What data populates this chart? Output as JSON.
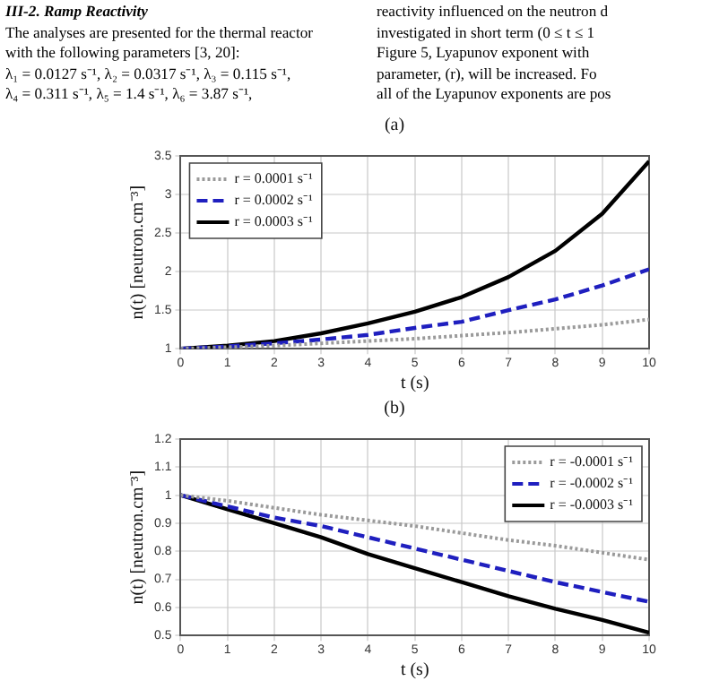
{
  "chart_data": [
    {
      "type": "line",
      "title": "(a)",
      "xlabel": "t (s)",
      "ylabel": "n(t) [neutron.cm⁻³]",
      "annotations": [
        "III-2. Ramp Reactivity",
        "The analyses are presented for the thermal reactor",
        "with the following parameters [3, 20]:",
        "λ₁ = 0.0127 s⁻¹, λ₂ = 0.0317 s⁻¹, λ₃ = 0.115 s⁻¹,",
        "λ₄ = 0.311 s⁻¹, λ₅ = 1.4 s⁻¹, λ₆ = 3.87 s⁻¹,",
        "reactivity influenced on the neutron d",
        "investigated in short term (0 ≤ t ≤ 1",
        "Figure 5, Lyapunov exponent with",
        "parameter, (r), will be increased. Fo",
        "all of the Lyapunov exponents are pos"
      ],
      "x": [
        0,
        1,
        2,
        3,
        4,
        5,
        6,
        7,
        8,
        9,
        10
      ],
      "series": [
        {
          "name": "r = 0.0001 s⁻¹",
          "color": "#9a9a9a",
          "line_style": "dotted",
          "values": [
            1,
            1.02,
            1.04,
            1.07,
            1.1,
            1.13,
            1.17,
            1.21,
            1.26,
            1.31,
            1.38
          ]
        },
        {
          "name": "r = 0.0002 s⁻¹",
          "color": "#1f1fbf",
          "line_style": "dashed",
          "values": [
            1,
            1.03,
            1.07,
            1.12,
            1.18,
            1.27,
            1.35,
            1.5,
            1.64,
            1.82,
            2.03
          ]
        },
        {
          "name": "r = 0.0003 s⁻¹",
          "color": "#000000",
          "line_style": "solid",
          "values": [
            1,
            1.04,
            1.1,
            1.2,
            1.33,
            1.48,
            1.67,
            1.93,
            2.27,
            2.75,
            3.43
          ]
        }
      ],
      "xlim": [
        0,
        10
      ],
      "xticks": [
        0,
        1,
        2,
        3,
        4,
        5,
        6,
        7,
        8,
        9,
        10
      ],
      "ylim": [
        1,
        3.5
      ],
      "yticks": [
        1,
        1.5,
        2,
        2.5,
        3,
        3.5
      ],
      "grid": true,
      "legend": "top left",
      "marker": "none"
    },
    {
      "type": "line",
      "title": "(b)",
      "xlabel": "t (s)",
      "ylabel": "n(t) [neutron.cm⁻³]",
      "x": [
        0,
        1,
        2,
        3,
        4,
        5,
        6,
        7,
        8,
        9,
        10
      ],
      "series": [
        {
          "name": "r = -0.0001 s⁻¹",
          "color": "#9a9a9a",
          "line_style": "dotted",
          "values": [
            1,
            0.98,
            0.955,
            0.93,
            0.91,
            0.89,
            0.865,
            0.84,
            0.82,
            0.795,
            0.77
          ]
        },
        {
          "name": "r = -0.0002 s⁻¹",
          "color": "#1f1fbf",
          "line_style": "dashed",
          "values": [
            1,
            0.96,
            0.92,
            0.89,
            0.85,
            0.81,
            0.77,
            0.73,
            0.69,
            0.655,
            0.62
          ]
        },
        {
          "name": "r = -0.0003 s⁻¹",
          "color": "#000000",
          "line_style": "solid",
          "values": [
            1,
            0.95,
            0.9,
            0.85,
            0.79,
            0.74,
            0.69,
            0.64,
            0.595,
            0.555,
            0.51
          ]
        }
      ],
      "xlim": [
        0,
        10
      ],
      "xticks": [
        0,
        1,
        2,
        3,
        4,
        5,
        6,
        7,
        8,
        9,
        10
      ],
      "ylim": [
        0.5,
        1.2
      ],
      "yticks": [
        0.5,
        0.6,
        0.7,
        0.8,
        0.9,
        1,
        1.1,
        1.2
      ],
      "grid": true,
      "legend": "top right",
      "marker": "none"
    }
  ]
}
